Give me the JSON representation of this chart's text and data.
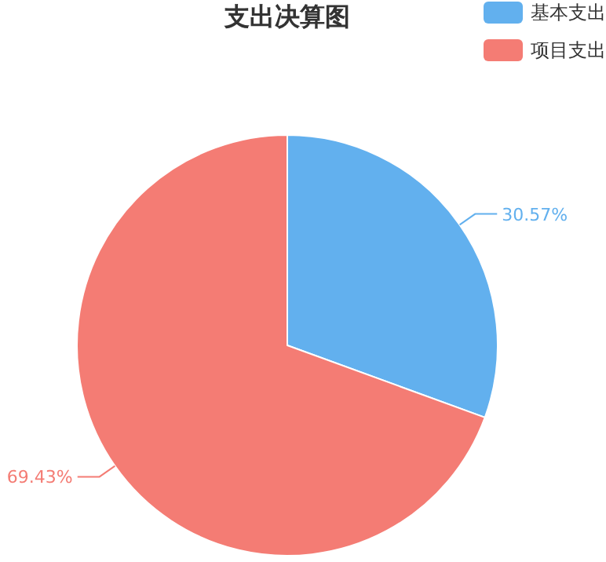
{
  "chart_data": {
    "type": "pie",
    "title": "支出决算图",
    "categories": [
      "基本支出",
      "项目支出"
    ],
    "values": [
      30.57,
      69.43
    ],
    "colors": [
      "#62b0ee",
      "#f47c74"
    ],
    "value_labels": [
      "30.57%",
      "69.43%"
    ],
    "legend": "top right"
  }
}
